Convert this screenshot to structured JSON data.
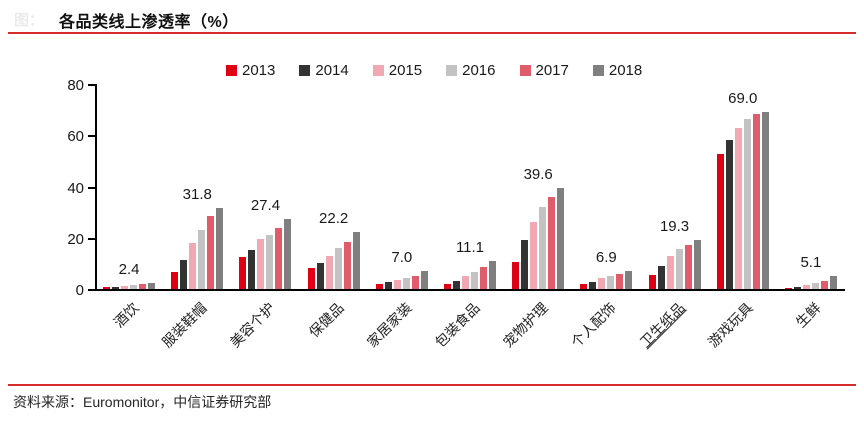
{
  "header": {
    "faint_prefix": "图：",
    "title": "各品类线上渗透率（%）"
  },
  "footer": {
    "source": "资料来源：Euromonitor，中信证券研究部"
  },
  "colors": {
    "accent_rule": "#d92b2b",
    "axis": "#000000"
  },
  "chart_data": {
    "type": "bar",
    "title": "各品类线上渗透率（%）",
    "xlabel": "",
    "ylabel": "",
    "ylim": [
      0,
      80
    ],
    "yticks": [
      0,
      20,
      40,
      60,
      80
    ],
    "grid": false,
    "legend_position": "top",
    "categories": [
      "酒饮",
      "服装鞋帽",
      "美容个护",
      "保健品",
      "家居家装",
      "包装食品",
      "宠物护理",
      "个人配饰",
      "卫生纸品",
      "游戏玩具",
      "生鲜"
    ],
    "underlined_category": "卫生纸品",
    "series": [
      {
        "name": "2013",
        "color": "#e00013",
        "values": [
          0.7,
          6.5,
          12.5,
          8.2,
          2.0,
          2.1,
          10.4,
          2.1,
          5.5,
          52.5,
          0.5
        ]
      },
      {
        "name": "2014",
        "color": "#333333",
        "values": [
          0.9,
          11.3,
          15.2,
          10.0,
          2.6,
          3.2,
          19.0,
          2.9,
          8.8,
          58.0,
          0.9
        ]
      },
      {
        "name": "2015",
        "color": "#f2a8b2",
        "values": [
          1.2,
          17.9,
          19.5,
          13.0,
          3.6,
          5.2,
          26.3,
          4.3,
          13.0,
          63.0,
          1.5
        ]
      },
      {
        "name": "2016",
        "color": "#c3c3c3",
        "values": [
          1.5,
          22.9,
          21.2,
          16.0,
          4.4,
          6.8,
          32.0,
          5.0,
          15.5,
          66.3,
          2.3
        ]
      },
      {
        "name": "2017",
        "color": "#e05c6b",
        "values": [
          1.8,
          28.3,
          23.8,
          18.5,
          5.2,
          8.7,
          36.0,
          5.8,
          17.3,
          68.4,
          3.3
        ]
      },
      {
        "name": "2018",
        "color": "#7f7f7f",
        "values": [
          2.4,
          31.8,
          27.4,
          22.2,
          7.0,
          11.1,
          39.6,
          6.9,
          19.3,
          69.0,
          5.1
        ]
      }
    ],
    "value_labels": {
      "series": "2018",
      "values": [
        "2.4",
        "31.8",
        "27.4",
        "22.2",
        "7.0",
        "11.1",
        "39.6",
        "6.9",
        "19.3",
        "69.0",
        "5.1"
      ]
    }
  }
}
